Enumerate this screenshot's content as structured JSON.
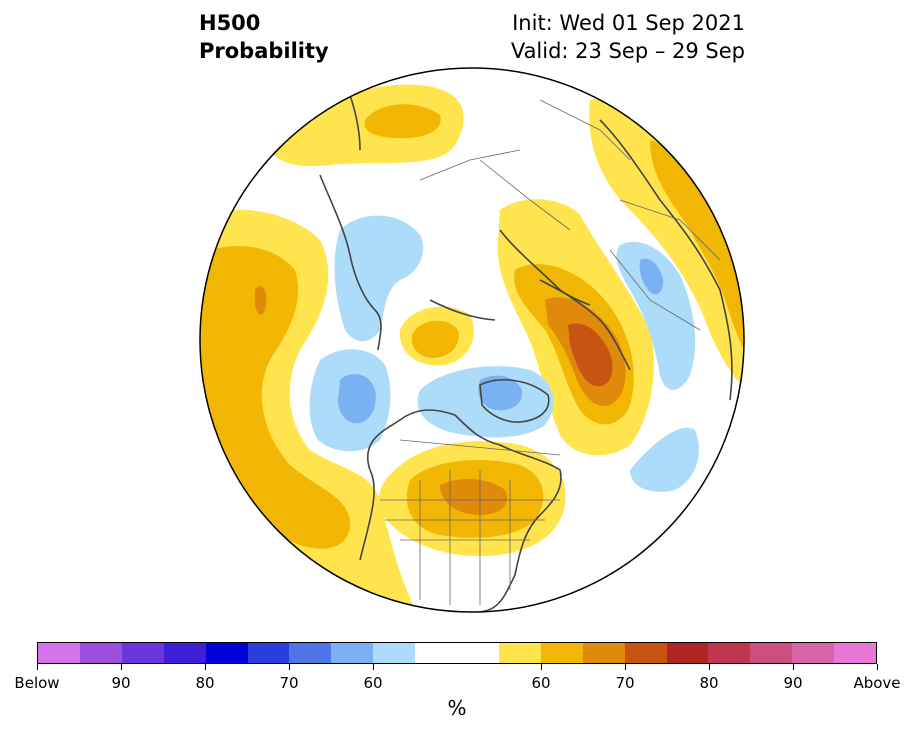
{
  "header": {
    "title_line1": "H500",
    "title_line2": "Probability",
    "init": "Init: Wed 01 Sep 2021",
    "valid": "Valid: 23 Sep – 29 Sep"
  },
  "map": {
    "projection": "north-polar-stereographic",
    "field": "500 hPa height tercile probability",
    "features": [
      {
        "name": "Above-normal maximum over Hudson Bay / Great Lakes",
        "category": "above",
        "max_pct": 70
      },
      {
        "name": "Above-normal maximum over Western Russia / Ural region",
        "category": "above",
        "max_pct": 70
      },
      {
        "name": "Above-normal band over North Pacific",
        "category": "above",
        "max_pct": 70
      },
      {
        "name": "Below-normal area over Canadian Arctic",
        "category": "below",
        "max_pct": 65
      },
      {
        "name": "Below-normal area near Alaska / Bering",
        "category": "below",
        "max_pct": 65
      }
    ]
  },
  "colorbar": {
    "unit": "%",
    "below_colors": [
      "#d373e8",
      "#9e4fe0",
      "#6b37db",
      "#3f1fd6",
      "#0000d9",
      "#2a3ee0",
      "#4f74e8",
      "#7ab1f2",
      "#addcfa"
    ],
    "neutral_color": "#ffffff",
    "above_colors": [
      "#ffe44e",
      "#f2b705",
      "#e08a0b",
      "#c85414",
      "#b02424",
      "#c0364f",
      "#cc4f7f",
      "#d964a8",
      "#e878d8"
    ],
    "tick_labels": [
      "Below",
      "90",
      "80",
      "70",
      "60",
      "60",
      "70",
      "80",
      "90",
      "Above"
    ]
  }
}
